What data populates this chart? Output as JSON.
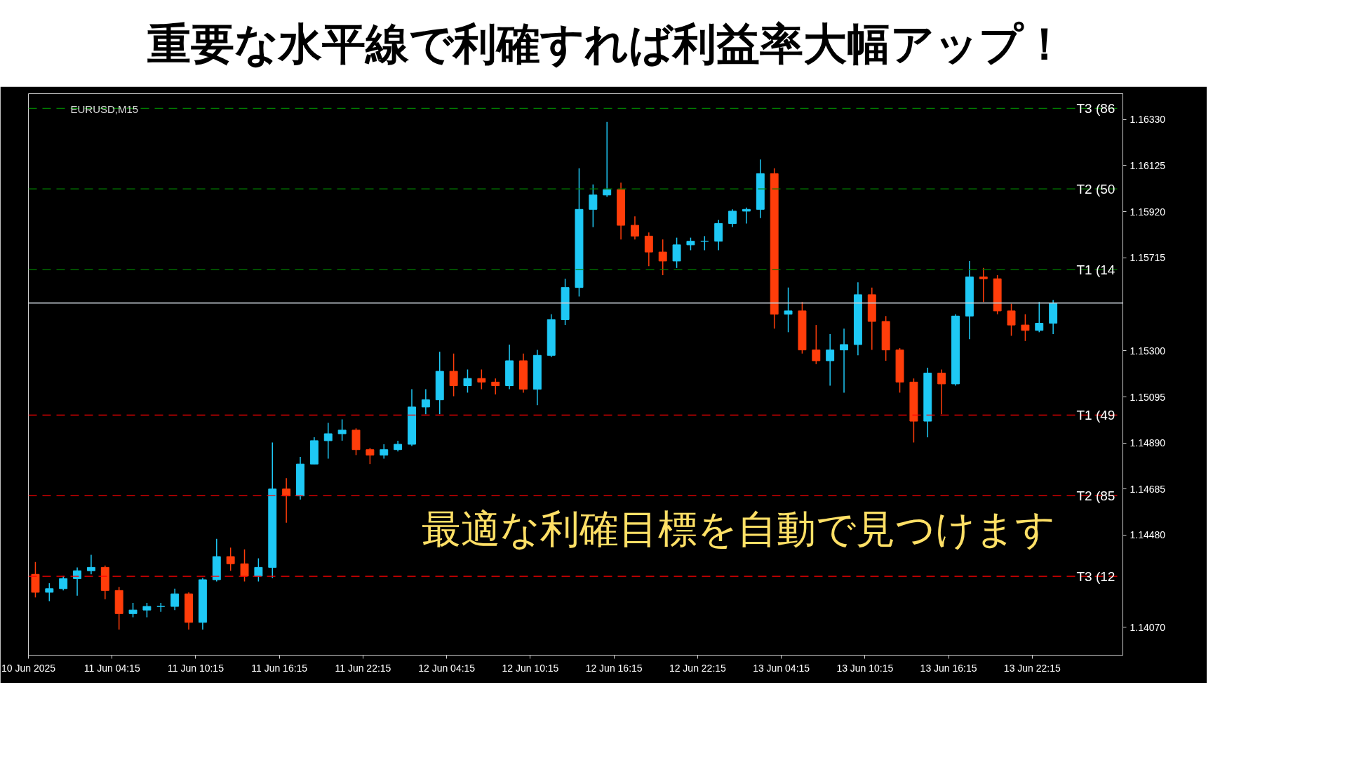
{
  "chart_data": {
    "type": "candlestick",
    "title": "重要な水平線で利確すれば利益率大幅アップ！",
    "annotations": [
      "EURUSD,M15",
      "最適な利確目標を自動で見つけます"
    ],
    "x": [
      "2025-06-10T22:45",
      "2025-06-10T23:45",
      "2025-06-11T00:45",
      "2025-06-11T01:45",
      "2025-06-11T02:45",
      "2025-06-11T03:45",
      "2025-06-11T04:45",
      "2025-06-11T05:45",
      "2025-06-11T06:45",
      "2025-06-11T07:45",
      "2025-06-11T08:45",
      "2025-06-11T09:45",
      "2025-06-11T10:45",
      "2025-06-11T11:45",
      "2025-06-11T12:45",
      "2025-06-11T13:45",
      "2025-06-11T14:45",
      "2025-06-11T15:45",
      "2025-06-11T16:45",
      "2025-06-11T17:45",
      "2025-06-11T18:45",
      "2025-06-11T19:45",
      "2025-06-11T20:45",
      "2025-06-11T21:45",
      "2025-06-11T22:45",
      "2025-06-11T23:45",
      "2025-06-12T00:45",
      "2025-06-12T01:45",
      "2025-06-12T02:45",
      "2025-06-12T03:45",
      "2025-06-12T04:45",
      "2025-06-12T05:45",
      "2025-06-12T06:45",
      "2025-06-12T07:45",
      "2025-06-12T08:45",
      "2025-06-12T09:45",
      "2025-06-12T10:45",
      "2025-06-12T11:45",
      "2025-06-12T12:45",
      "2025-06-12T13:45",
      "2025-06-12T14:45",
      "2025-06-12T15:45",
      "2025-06-12T16:45",
      "2025-06-12T17:45",
      "2025-06-12T18:45",
      "2025-06-12T19:45",
      "2025-06-12T20:45",
      "2025-06-12T21:45",
      "2025-06-12T22:45",
      "2025-06-12T23:45",
      "2025-06-13T00:45",
      "2025-06-13T01:45",
      "2025-06-13T02:45",
      "2025-06-13T03:45",
      "2025-06-13T04:45",
      "2025-06-13T05:45",
      "2025-06-13T06:45",
      "2025-06-13T07:45",
      "2025-06-13T08:45",
      "2025-06-13T09:45",
      "2025-06-13T10:45",
      "2025-06-13T11:45",
      "2025-06-13T12:45",
      "2025-06-13T13:45",
      "2025-06-13T14:45",
      "2025-06-13T15:45",
      "2025-06-13T16:45",
      "2025-06-13T17:45",
      "2025-06-13T18:45",
      "2025-06-13T19:45",
      "2025-06-13T20:45",
      "2025-06-13T21:45",
      "2025-06-13T22:45",
      "2025-06-13T23:45"
    ],
    "ohlc": [
      [
        1.14305,
        1.1436,
        1.14202,
        1.14225
      ],
      [
        1.14225,
        1.14265,
        1.14186,
        1.14241
      ],
      [
        1.14241,
        1.14297,
        1.14233,
        1.14286
      ],
      [
        1.14286,
        1.14336,
        1.1421,
        1.14321
      ],
      [
        1.14321,
        1.14392,
        1.14305,
        1.14336
      ],
      [
        1.14336,
        1.14344,
        1.14194,
        1.14233
      ],
      [
        1.14233,
        1.14249,
        1.14059,
        1.1413
      ],
      [
        1.1413,
        1.14178,
        1.14114,
        1.14146
      ],
      [
        1.14146,
        1.14178,
        1.14114,
        1.14162
      ],
      [
        1.14162,
        1.14178,
        1.14138,
        1.14162
      ],
      [
        1.14162,
        1.14241,
        1.14146,
        1.14218
      ],
      [
        1.14218,
        1.14225,
        1.14059,
        1.14091
      ],
      [
        1.14091,
        1.14289,
        1.14059,
        1.14281
      ],
      [
        1.14281,
        1.14463,
        1.14273,
        1.14384
      ],
      [
        1.14384,
        1.14424,
        1.14321,
        1.14352
      ],
      [
        1.14352,
        1.14416,
        1.14273,
        1.14297
      ],
      [
        1.14297,
        1.14376,
        1.14273,
        1.14336
      ],
      [
        1.14336,
        1.14892,
        1.14289,
        1.14685
      ],
      [
        1.14685,
        1.14733,
        1.14535,
        1.14654
      ],
      [
        1.14654,
        1.14828,
        1.14638,
        1.14796
      ],
      [
        1.14796,
        1.14915,
        1.14796,
        1.149
      ],
      [
        1.149,
        1.14979,
        1.1482,
        1.14931
      ],
      [
        1.14931,
        1.14995,
        1.149,
        1.14947
      ],
      [
        1.14947,
        1.14955,
        1.14836,
        1.1486
      ],
      [
        1.1486,
        1.14868,
        1.14796,
        1.14836
      ],
      [
        1.14836,
        1.14884,
        1.1482,
        1.1486
      ],
      [
        1.1486,
        1.149,
        1.14852,
        1.14884
      ],
      [
        1.14884,
        1.15129,
        1.14876,
        1.1505
      ],
      [
        1.1505,
        1.15129,
        1.15018,
        1.15082
      ],
      [
        1.15082,
        1.15296,
        1.15018,
        1.15209
      ],
      [
        1.15209,
        1.15288,
        1.15098,
        1.15145
      ],
      [
        1.15145,
        1.15217,
        1.15114,
        1.15177
      ],
      [
        1.15177,
        1.15217,
        1.15129,
        1.15161
      ],
      [
        1.15161,
        1.15177,
        1.15106,
        1.15145
      ],
      [
        1.15145,
        1.15328,
        1.15129,
        1.15256
      ],
      [
        1.15256,
        1.15288,
        1.15114,
        1.15129
      ],
      [
        1.15129,
        1.15304,
        1.15058,
        1.1528
      ],
      [
        1.1528,
        1.15463,
        1.15272,
        1.15439
      ],
      [
        1.15439,
        1.15621,
        1.15415,
        1.15582
      ],
      [
        1.15582,
        1.16113,
        1.15542,
        1.1593
      ],
      [
        1.1593,
        1.16041,
        1.15851,
        1.15994
      ],
      [
        1.15994,
        1.16319,
        1.15986,
        1.16018
      ],
      [
        1.16018,
        1.16049,
        1.15796,
        1.15859
      ],
      [
        1.15859,
        1.15899,
        1.15796,
        1.15811
      ],
      [
        1.15811,
        1.15827,
        1.15677,
        1.1574
      ],
      [
        1.1574,
        1.15796,
        1.15637,
        1.157
      ],
      [
        1.157,
        1.15804,
        1.15669,
        1.15772
      ],
      [
        1.15772,
        1.15804,
        1.15748,
        1.15788
      ],
      [
        1.15788,
        1.15811,
        1.15748,
        1.15788
      ],
      [
        1.15788,
        1.15883,
        1.15748,
        1.15867
      ],
      [
        1.15867,
        1.1593,
        1.15851,
        1.15922
      ],
      [
        1.15922,
        1.15938,
        1.15867,
        1.1593
      ],
      [
        1.1593,
        1.16152,
        1.15891,
        1.16089
      ],
      [
        1.16089,
        1.16113,
        1.15399,
        1.15463
      ],
      [
        1.15463,
        1.15582,
        1.15383,
        1.15478
      ],
      [
        1.15478,
        1.15518,
        1.15288,
        1.15304
      ],
      [
        1.15304,
        1.15415,
        1.15241,
        1.15256
      ],
      [
        1.15256,
        1.15375,
        1.15145,
        1.15304
      ],
      [
        1.15304,
        1.15399,
        1.15114,
        1.15328
      ],
      [
        1.15328,
        1.15605,
        1.1528,
        1.1555
      ],
      [
        1.1555,
        1.15582,
        1.15304,
        1.15431
      ],
      [
        1.15431,
        1.15455,
        1.15256,
        1.15304
      ],
      [
        1.15304,
        1.15312,
        1.15114,
        1.15161
      ],
      [
        1.15161,
        1.15177,
        1.14892,
        1.14987
      ],
      [
        1.14987,
        1.15225,
        1.14915,
        1.15201
      ],
      [
        1.15201,
        1.15217,
        1.15018,
        1.15153
      ],
      [
        1.15153,
        1.15463,
        1.15145,
        1.15455
      ],
      [
        1.15455,
        1.157,
        1.15352,
        1.15629
      ],
      [
        1.15629,
        1.15669,
        1.15518,
        1.15621
      ],
      [
        1.15621,
        1.15637,
        1.15463,
        1.15478
      ],
      [
        1.15478,
        1.1551,
        1.15367,
        1.15415
      ],
      [
        1.15415,
        1.15463,
        1.15344,
        1.15391
      ],
      [
        1.15391,
        1.15518,
        1.15383,
        1.15423
      ],
      [
        1.15423,
        1.15526,
        1.15375,
        1.15513
      ]
    ],
    "colors": [
      "#ff3d0a",
      "#1ec8f5",
      "#1ec8f5",
      "#1ec8f5",
      "#1ec8f5",
      "#ff3d0a",
      "#ff3d0a",
      "#1ec8f5",
      "#1ec8f5",
      "#1ec8f5",
      "#1ec8f5",
      "#ff3d0a",
      "#1ec8f5",
      "#1ec8f5",
      "#ff3d0a",
      "#ff3d0a",
      "#1ec8f5",
      "#1ec8f5",
      "#ff3d0a",
      "#1ec8f5",
      "#1ec8f5",
      "#1ec8f5",
      "#1ec8f5",
      "#ff3d0a",
      "#ff3d0a",
      "#1ec8f5",
      "#1ec8f5",
      "#1ec8f5",
      "#1ec8f5",
      "#1ec8f5",
      "#ff3d0a",
      "#1ec8f5",
      "#ff3d0a",
      "#ff3d0a",
      "#1ec8f5",
      "#ff3d0a",
      "#1ec8f5",
      "#1ec8f5",
      "#1ec8f5",
      "#1ec8f5",
      "#1ec8f5",
      "#1ec8f5",
      "#ff3d0a",
      "#ff3d0a",
      "#ff3d0a",
      "#ff3d0a",
      "#1ec8f5",
      "#1ec8f5",
      "#1ec8f5",
      "#1ec8f5",
      "#1ec8f5",
      "#1ec8f5",
      "#1ec8f5",
      "#ff3d0a",
      "#1ec8f5",
      "#ff3d0a",
      "#ff3d0a",
      "#1ec8f5",
      "#1ec8f5",
      "#1ec8f5",
      "#ff3d0a",
      "#ff3d0a",
      "#ff3d0a",
      "#ff3d0a",
      "#1ec8f5",
      "#ff3d0a",
      "#1ec8f5",
      "#1ec8f5",
      "#ff3d0a",
      "#ff3d0a",
      "#ff3d0a",
      "#ff3d0a",
      "#1ec8f5",
      "#1ec8f5"
    ],
    "xlim": [
      "2025-06-10T22:15",
      "2025-06-14T04:45"
    ],
    "ylim": [
      1.13945,
      1.16445
    ],
    "xticks": [
      {
        "value": "2025-06-10T22:15",
        "label": "10 Jun 2025"
      },
      {
        "value": "2025-06-11T04:15",
        "label": "11 Jun 04:15"
      },
      {
        "value": "2025-06-11T10:15",
        "label": "11 Jun 10:15"
      },
      {
        "value": "2025-06-11T16:15",
        "label": "11 Jun 16:15"
      },
      {
        "value": "2025-06-11T22:15",
        "label": "11 Jun 22:15"
      },
      {
        "value": "2025-06-12T04:15",
        "label": "12 Jun 04:15"
      },
      {
        "value": "2025-06-12T10:15",
        "label": "12 Jun 10:15"
      },
      {
        "value": "2025-06-12T16:15",
        "label": "12 Jun 16:15"
      },
      {
        "value": "2025-06-12T22:15",
        "label": "12 Jun 22:15"
      },
      {
        "value": "2025-06-13T04:15",
        "label": "13 Jun 04:15"
      },
      {
        "value": "2025-06-13T10:15",
        "label": "13 Jun 10:15"
      },
      {
        "value": "2025-06-13T16:15",
        "label": "13 Jun 16:15"
      },
      {
        "value": "2025-06-13T22:15",
        "label": "13 Jun 22:15"
      }
    ],
    "yticks": [
      {
        "value": 1.1407,
        "label": "1.14070"
      },
      {
        "value": 1.1448,
        "label": "1.14480"
      },
      1.14685,
      {
        "value": 1.1489,
        "label": "1.14890"
      },
      1.15095,
      {
        "value": 1.153,
        "label": "1.15300"
      },
      1.15715,
      {
        "value": 1.1592,
        "label": "1.15920"
      },
      1.16125,
      {
        "value": 1.1633,
        "label": "1.16330"
      }
    ],
    "ref_lines": [
      {
        "axis": "y",
        "value": 1.1638,
        "label": "T3 (86",
        "color": "#008000",
        "line_style": "dashed"
      },
      {
        "axis": "y",
        "value": 1.16021,
        "label": "T2 (50",
        "color": "#008000",
        "line_style": "dashed"
      },
      {
        "axis": "y",
        "value": 1.15662,
        "label": "T1 (14",
        "color": "#008000",
        "line_style": "dashed"
      },
      {
        "axis": "y",
        "value": 1.15513,
        "label": null,
        "color": "#c8d0d8",
        "line_style": "solid"
      },
      {
        "axis": "y",
        "value": 1.15014,
        "label": "T1 (49",
        "color": "#ff0000",
        "line_style": "dashed"
      },
      {
        "axis": "y",
        "value": 1.14655,
        "label": "T2 (85",
        "color": "#ff0000",
        "line_style": "dashed"
      },
      {
        "axis": "y",
        "value": 1.14296,
        "label": "T3 (12",
        "color": "#ff0000",
        "line_style": "dashed"
      }
    ]
  }
}
